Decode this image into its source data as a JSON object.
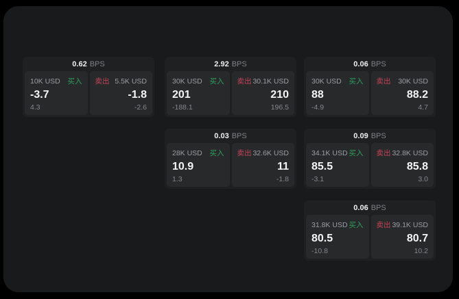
{
  "colors": {
    "background": "#000000",
    "panel": "#191a1b",
    "card": "#1f2021",
    "tile": "#28292b",
    "buy_green": "#2f9e5f",
    "sell_red": "#c24459"
  },
  "cards": [
    {
      "bps_value": "0.62",
      "bps_unit": "BPS",
      "buy": {
        "amount": "10K USD",
        "side_label": "买入",
        "value": "-3.7",
        "sub_value": "4.3"
      },
      "sell": {
        "amount": "5.5K USD",
        "side_label": "卖出",
        "value": "-1.8",
        "sub_value": "-2.6"
      }
    },
    {
      "bps_value": "2.92",
      "bps_unit": "BPS",
      "buy": {
        "amount": "30K USD",
        "side_label": "买入",
        "value": "201",
        "sub_value": "-188.1"
      },
      "sell": {
        "amount": "30.1K USD",
        "side_label": "卖出",
        "value": "210",
        "sub_value": "196.5"
      }
    },
    {
      "bps_value": "0.06",
      "bps_unit": "BPS",
      "buy": {
        "amount": "30K USD",
        "side_label": "买入",
        "value": "88",
        "sub_value": "-4.9"
      },
      "sell": {
        "amount": "30K USD",
        "side_label": "卖出",
        "value": "88.2",
        "sub_value": "4.7"
      }
    },
    {
      "bps_value": "0.03",
      "bps_unit": "BPS",
      "buy": {
        "amount": "28K USD",
        "side_label": "买入",
        "value": "10.9",
        "sub_value": "1.3"
      },
      "sell": {
        "amount": "32.6K USD",
        "side_label": "卖出",
        "value": "11",
        "sub_value": "-1.8"
      }
    },
    {
      "bps_value": "0.09",
      "bps_unit": "BPS",
      "buy": {
        "amount": "34.1K USD",
        "side_label": "买入",
        "value": "85.5",
        "sub_value": "-3.1"
      },
      "sell": {
        "amount": "32.8K USD",
        "side_label": "卖出",
        "value": "85.8",
        "sub_value": "3.0"
      }
    },
    {
      "bps_value": "0.06",
      "bps_unit": "BPS",
      "buy": {
        "amount": "31.8K USD",
        "side_label": "买入",
        "value": "80.5",
        "sub_value": "-10.8"
      },
      "sell": {
        "amount": "39.1K USD",
        "side_label": "卖出",
        "value": "80.7",
        "sub_value": "10.2"
      }
    }
  ]
}
